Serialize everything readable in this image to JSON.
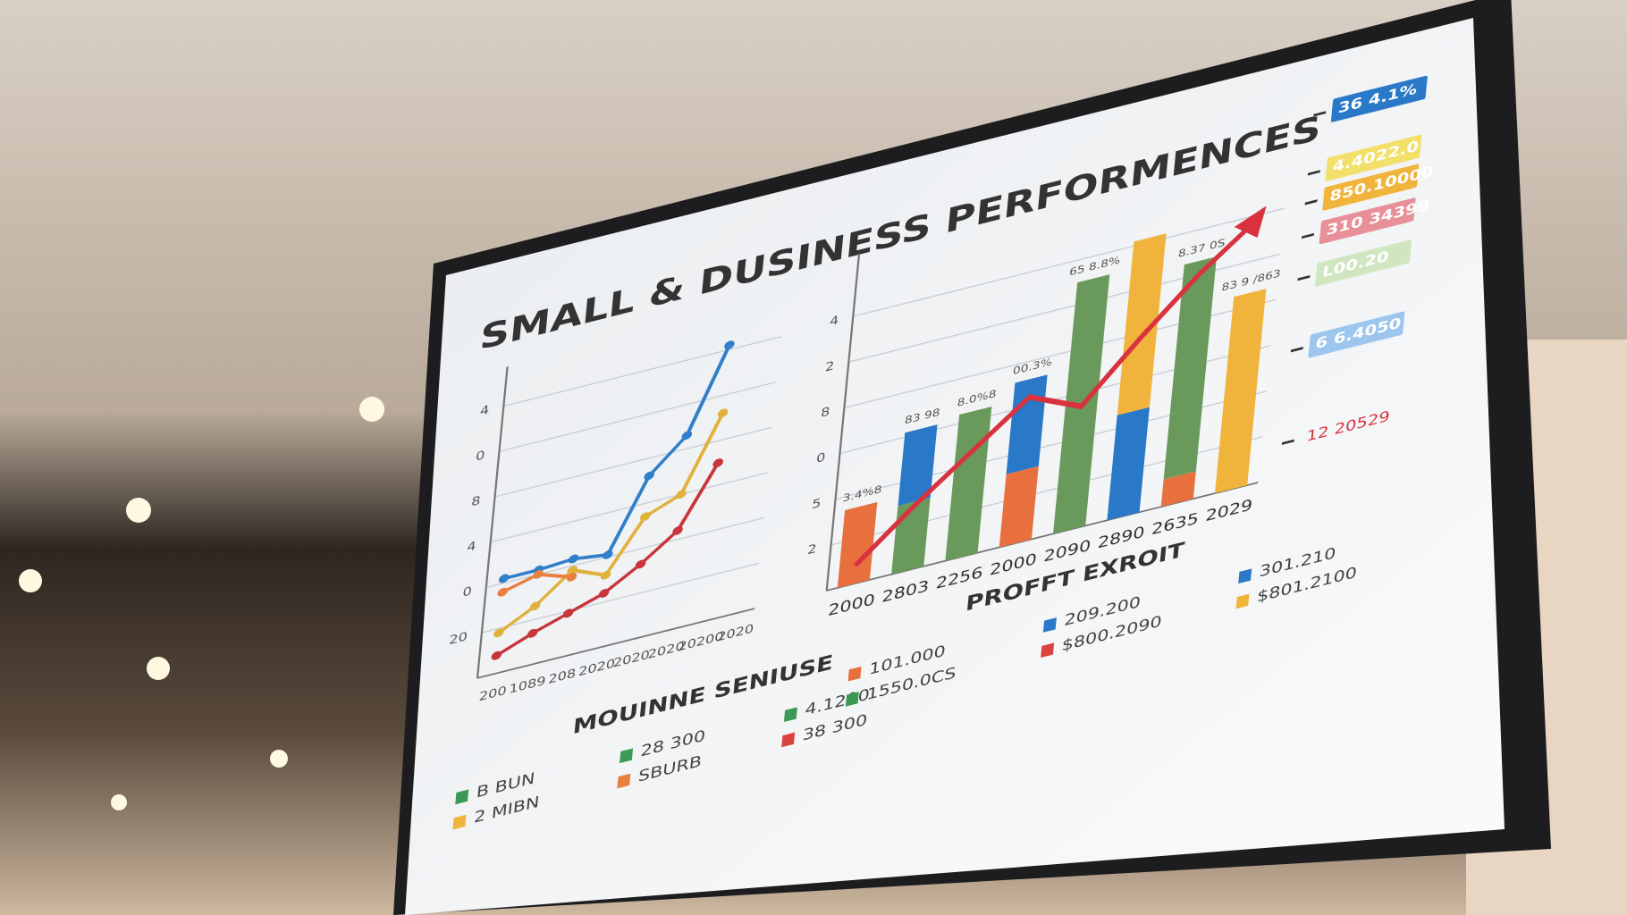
{
  "title": "SMALL & DUSINESS PERFORMENCES",
  "chart_data": [
    {
      "type": "line",
      "legend_title": "MOUINNE SENIUSE",
      "categories": [
        "200",
        "1089",
        "208",
        "2020",
        "2020",
        "2020",
        "20200",
        "2020"
      ],
      "ylim": [
        0,
        6.5
      ],
      "yticks": [
        {
          "value": 1,
          "label": "20"
        },
        {
          "value": 2,
          "label": "0"
        },
        {
          "value": 3,
          "label": "4"
        },
        {
          "value": 4,
          "label": "8"
        },
        {
          "value": 5,
          "label": "0"
        },
        {
          "value": 6,
          "label": "4"
        }
      ],
      "grid": true,
      "series": [
        {
          "color": "#2f7fca",
          "values": [
            2.1,
            2.1,
            2.15,
            2.05,
            3.6,
            4.3,
            6.1,
            null
          ]
        },
        {
          "color": "#e0b23c",
          "values": [
            0.9,
            1.3,
            1.9,
            1.6,
            2.7,
            3.0,
            4.6,
            null
          ]
        },
        {
          "color": "#c8353a",
          "values": [
            0.4,
            0.7,
            0.95,
            1.2,
            1.65,
            2.2,
            3.5,
            null
          ]
        },
        {
          "color": "#e8803f",
          "values": [
            1.8,
            2.0,
            1.75,
            null,
            null,
            null,
            null,
            null
          ]
        }
      ],
      "legend": [
        {
          "label": "B BUN",
          "color": "#3a9a55"
        },
        {
          "label": "2 MIBN",
          "color": "#f0b43c"
        },
        {
          "label": "28 300",
          "color": "#3a9a55"
        },
        {
          "label": "SBURB",
          "color": "#e8803f"
        },
        {
          "label": "4.1200",
          "color": "#3a9a55"
        },
        {
          "label": "38 300",
          "color": "#d9443f"
        }
      ]
    },
    {
      "type": "bar",
      "legend_title": "PROFFT EXROIT",
      "categories": [
        "2000",
        "2803",
        "2256",
        "2000",
        "2090",
        "2890",
        "2635",
        "2029"
      ],
      "ylim": [
        0,
        7
      ],
      "yticks": [
        {
          "value": 1,
          "label": "2"
        },
        {
          "value": 2,
          "label": "5"
        },
        {
          "value": 3,
          "label": "0"
        },
        {
          "value": 4,
          "label": "8"
        },
        {
          "value": 5,
          "label": "2"
        },
        {
          "value": 6,
          "label": "4"
        }
      ],
      "grid": true,
      "series": [
        {
          "color": "#e8703f",
          "values": [
            1.7,
            0,
            0,
            1.6,
            0,
            0,
            0.6,
            0
          ]
        },
        {
          "color": "#6a9a5b",
          "values": [
            0,
            1.5,
            3.2,
            0,
            5.5,
            0,
            4.7,
            0
          ]
        },
        {
          "color": "#2a78c8",
          "values": [
            0,
            1.6,
            0,
            2.0,
            0,
            2.3,
            0,
            0
          ]
        },
        {
          "color": "#f0b43c",
          "values": [
            0,
            0,
            0,
            0,
            0,
            3.8,
            0,
            4.3
          ]
        }
      ],
      "bar_labels": [
        "3.4%8",
        "83 98",
        "8.0%8",
        "00.3%",
        "65 8.8%",
        null,
        "8.37 0S",
        "83 9 /863"
      ],
      "trend": {
        "color": "#d9323f",
        "values": [
          0.4,
          1.4,
          2.3,
          3.2,
          2.7,
          3.9,
          5.0,
          5.9
        ]
      },
      "side_labels": [
        {
          "label": "36 4.1%",
          "color": "#2a78c8"
        },
        {
          "label": "4.4022.0",
          "color": "#f2e06a"
        },
        {
          "label": "850.10000",
          "color": "#f0b43c"
        },
        {
          "label": "310 34399",
          "color": "#e8909a"
        },
        {
          "label": "L00.20",
          "color": "#cfe6c0"
        },
        {
          "label": "6 6.4050",
          "color": "#9cc6ee"
        },
        {
          "label": "12 20529",
          "color": "none"
        }
      ],
      "legend": [
        {
          "label": "101.000",
          "color": "#e8703f"
        },
        {
          "label": "1550.0CS",
          "color": "#3a9a55"
        },
        {
          "label": "209.200",
          "color": "#2a78c8"
        },
        {
          "label": "$800.2090",
          "color": "#d9443f"
        },
        {
          "label": "301.210",
          "color": "#2a78c8"
        },
        {
          "label": "$801.2100",
          "color": "#f0b43c"
        }
      ]
    }
  ]
}
